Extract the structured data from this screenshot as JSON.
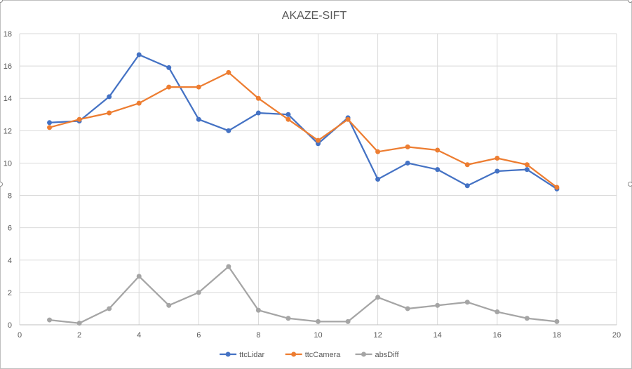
{
  "chart_data": {
    "type": "line",
    "title": "AKAZE-SIFT",
    "xlabel": "",
    "ylabel": "",
    "xlim": [
      0,
      20
    ],
    "ylim": [
      0,
      18
    ],
    "xticks": [
      0,
      2,
      4,
      6,
      8,
      10,
      12,
      14,
      16,
      18,
      20
    ],
    "yticks": [
      0,
      2,
      4,
      6,
      8,
      10,
      12,
      14,
      16,
      18
    ],
    "grid": true,
    "legend_position": "bottom",
    "x": [
      1,
      2,
      3,
      4,
      5,
      6,
      7,
      8,
      9,
      10,
      11,
      12,
      13,
      14,
      15,
      16,
      17,
      18
    ],
    "series": [
      {
        "name": "ttcLidar",
        "color": "#4472c4",
        "values": [
          12.5,
          12.6,
          14.1,
          16.7,
          15.9,
          12.7,
          12.0,
          13.1,
          13.0,
          11.2,
          12.8,
          9.0,
          10.0,
          9.6,
          8.6,
          9.5,
          9.6,
          8.4
        ]
      },
      {
        "name": "ttcCamera",
        "color": "#ed7d31",
        "values": [
          12.2,
          12.7,
          13.1,
          13.7,
          14.7,
          14.7,
          15.6,
          14.0,
          12.7,
          11.4,
          12.7,
          10.7,
          11.0,
          10.8,
          9.9,
          10.3,
          9.9,
          8.5
        ]
      },
      {
        "name": "absDiff",
        "color": "#a5a5a5",
        "values": [
          0.3,
          0.1,
          1.0,
          3.0,
          1.2,
          2.0,
          3.6,
          0.9,
          0.4,
          0.2,
          0.2,
          1.7,
          1.0,
          1.2,
          1.4,
          0.8,
          0.4,
          0.2
        ]
      }
    ]
  }
}
